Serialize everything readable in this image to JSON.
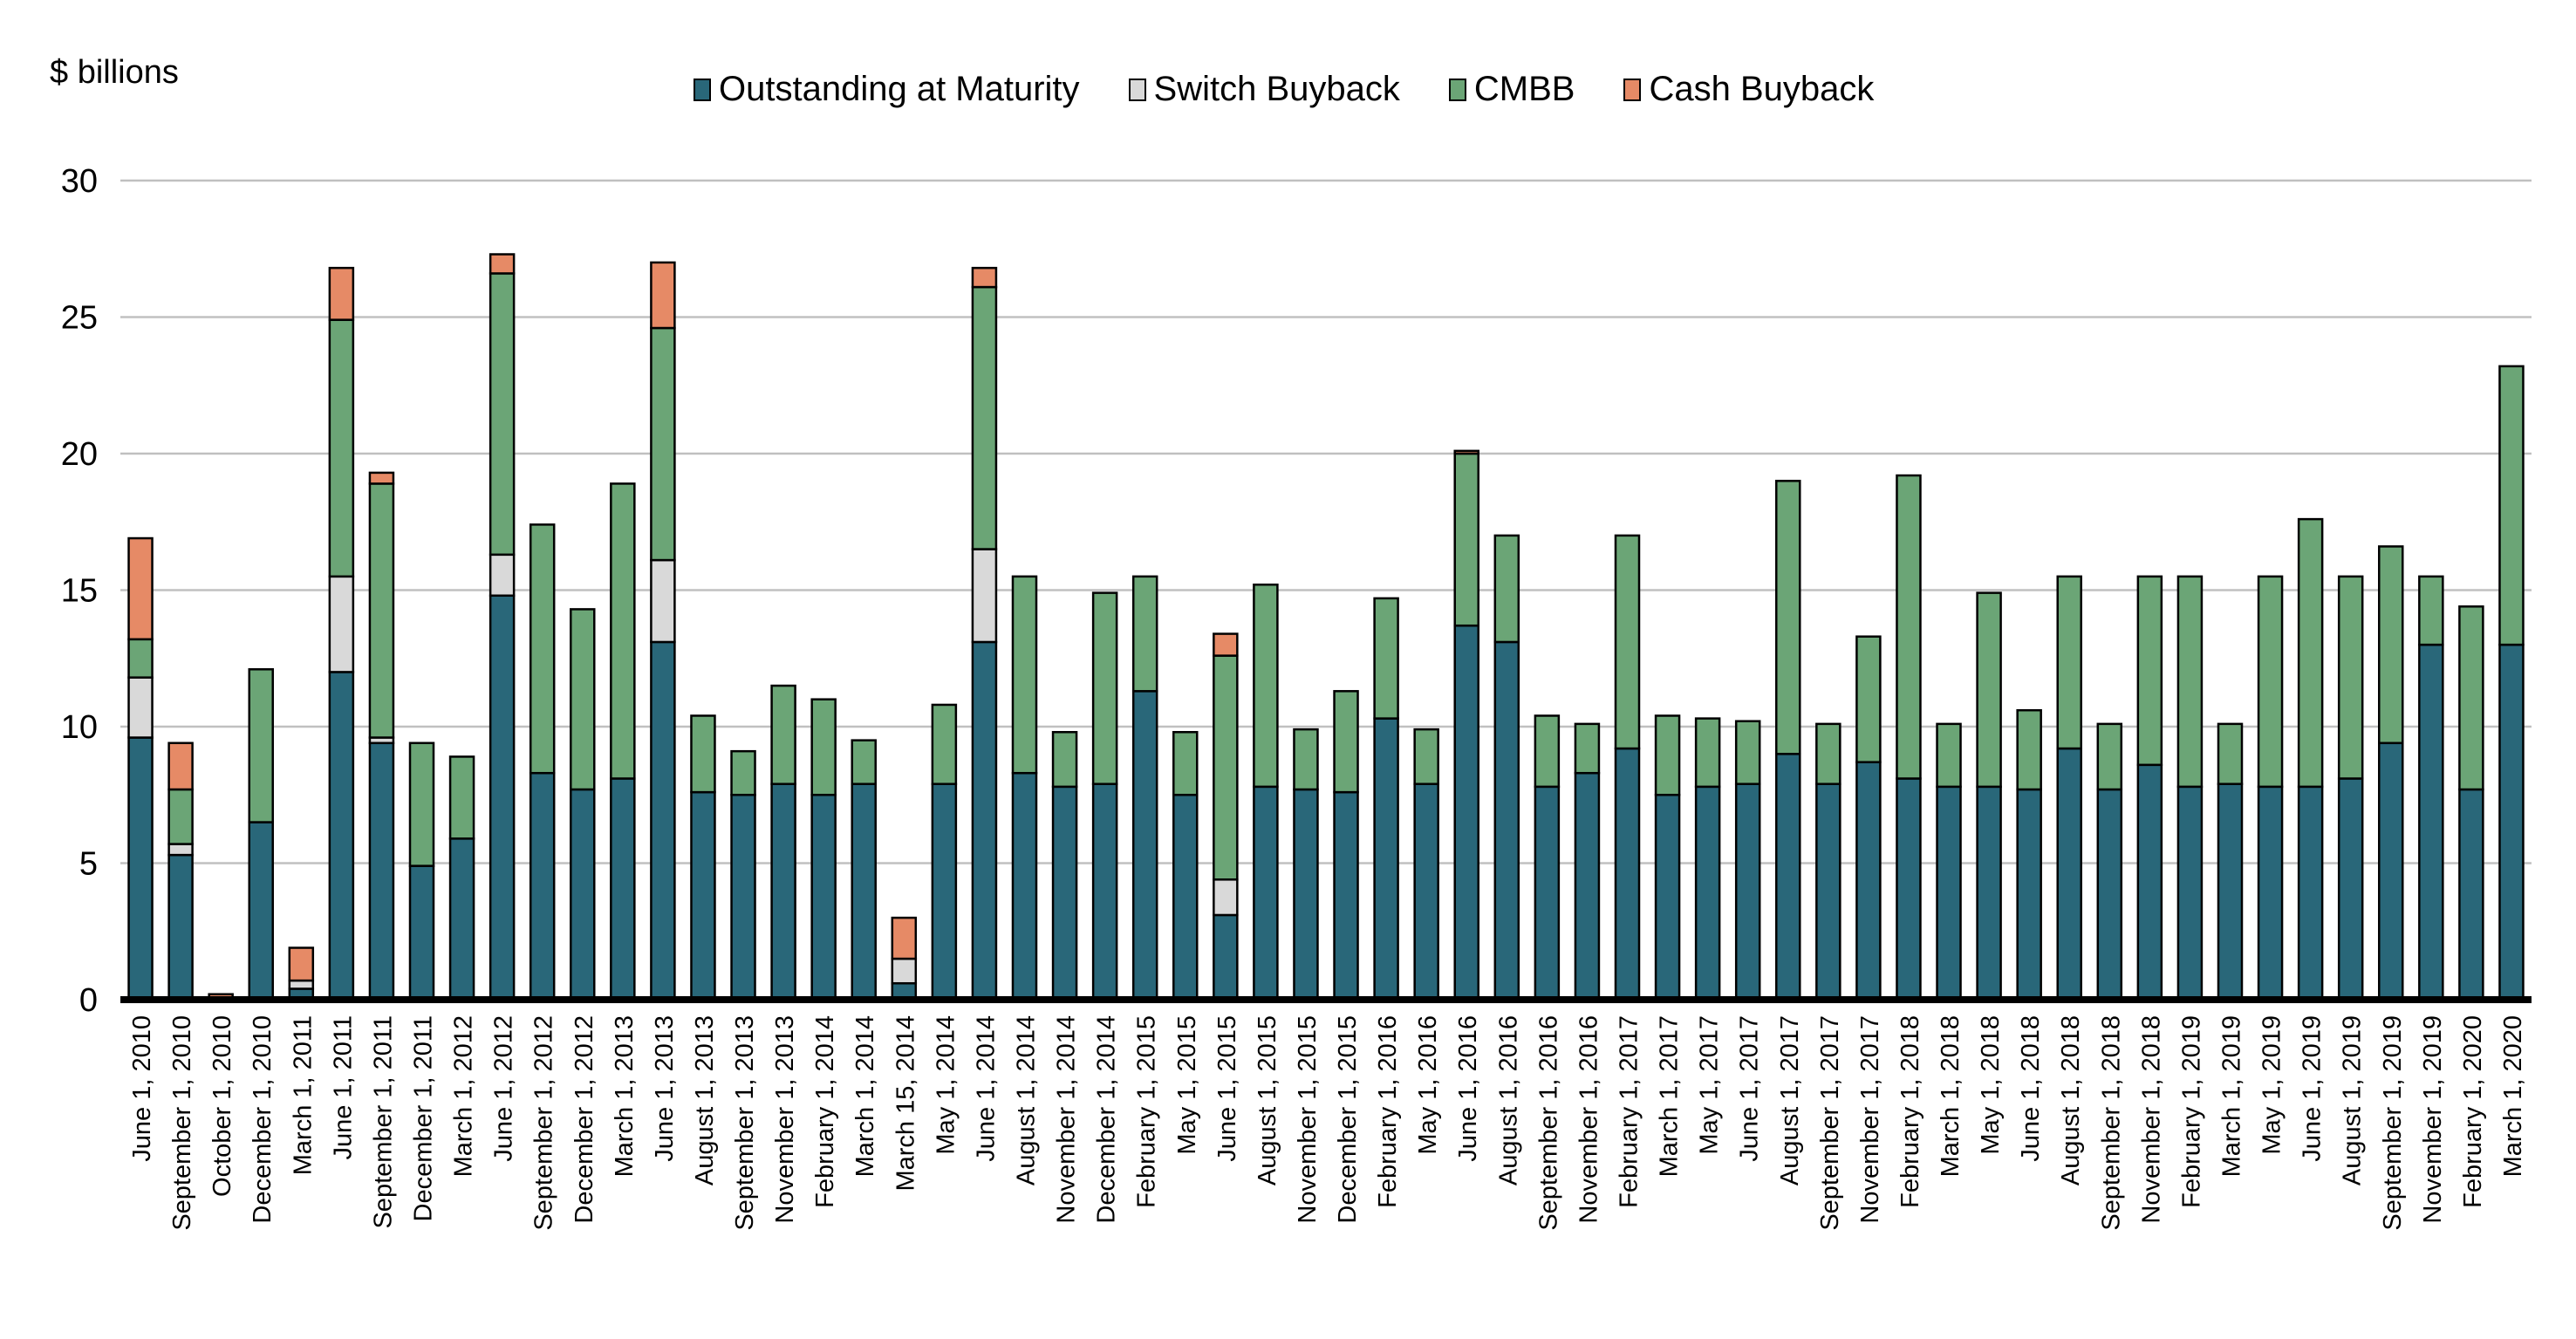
{
  "chart_data": {
    "type": "bar",
    "stacked": true,
    "title": "",
    "xlabel": "",
    "ylabel": "$ billions",
    "ylim": [
      0,
      30
    ],
    "yticks": [
      0,
      5,
      10,
      15,
      20,
      25,
      30
    ],
    "grid": true,
    "legend_position": "top-center",
    "categories": [
      "June 1, 2010",
      "September 1, 2010",
      "October 1, 2010",
      "December 1, 2010",
      "March 1, 2011",
      "June 1, 2011",
      "September 1, 2011",
      "December 1, 2011",
      "March 1, 2012",
      "June 1, 2012",
      "September 1, 2012",
      "December 1, 2012",
      "March 1, 2013",
      "June 1, 2013",
      "August 1, 2013",
      "September 1, 2013",
      "November 1, 2013",
      "February 1, 2014",
      "March 1, 2014",
      "March 15, 2014",
      "May 1, 2014",
      "June 1, 2014",
      "August 1, 2014",
      "November 1, 2014",
      "December 1, 2014",
      "February 1, 2015",
      "May 1, 2015",
      "June 1, 2015",
      "August 1, 2015",
      "November 1, 2015",
      "December 1, 2015",
      "February 1, 2016",
      "May 1, 2016",
      "June 1, 2016",
      "August 1, 2016",
      "September 1, 2016",
      "November 1, 2016",
      "February 1, 2017",
      "March 1, 2017",
      "May 1, 2017",
      "June 1, 2017",
      "August 1, 2017",
      "September 1, 2017",
      "November 1, 2017",
      "February 1, 2018",
      "March 1, 2018",
      "May 1, 2018",
      "June 1, 2018",
      "August 1, 2018",
      "September 1, 2018",
      "November 1, 2018",
      "February 1, 2019",
      "March 1, 2019",
      "May 1, 2019",
      "June 1, 2019",
      "August 1, 2019",
      "September 1, 2019",
      "November 1, 2019",
      "February 1, 2020",
      "March 1, 2020"
    ],
    "series": [
      {
        "name": "Outstanding at Maturity",
        "color": "#296779",
        "values": [
          9.6,
          5.3,
          0,
          6.5,
          0.4,
          12.0,
          9.4,
          4.9,
          5.9,
          14.8,
          8.3,
          7.7,
          8.1,
          13.1,
          7.6,
          7.5,
          7.9,
          7.5,
          7.9,
          0.6,
          7.9,
          13.1,
          8.3,
          7.8,
          7.9,
          11.3,
          7.5,
          3.1,
          7.8,
          7.7,
          7.6,
          10.3,
          7.9,
          13.7,
          13.1,
          7.8,
          8.3,
          9.2,
          7.5,
          7.8,
          7.9,
          9.0,
          7.9,
          8.7,
          8.1,
          7.8,
          7.8,
          7.7,
          9.2,
          7.7,
          8.6,
          7.8,
          7.9,
          7.8,
          7.8,
          8.1,
          9.4,
          13.0,
          7.7,
          13.0
        ]
      },
      {
        "name": "Switch Buyback",
        "color": "#d9d9d9",
        "values": [
          2.2,
          0.4,
          0,
          0,
          0.3,
          3.5,
          0.2,
          0,
          0,
          1.5,
          0,
          0,
          0,
          3.0,
          0,
          0,
          0,
          0,
          0,
          0.9,
          0,
          3.4,
          0,
          0,
          0,
          0,
          0,
          1.3,
          0,
          0,
          0,
          0,
          0,
          0,
          0,
          0,
          0,
          0,
          0,
          0,
          0,
          0,
          0,
          0,
          0,
          0,
          0,
          0,
          0,
          0,
          0,
          0,
          0,
          0,
          0,
          0,
          0,
          0,
          0,
          0
        ]
      },
      {
        "name": "CMBB",
        "color": "#6ba576",
        "values": [
          1.4,
          2.0,
          0,
          5.6,
          0,
          9.4,
          9.3,
          4.5,
          3.0,
          10.3,
          9.1,
          6.6,
          10.8,
          8.5,
          2.8,
          1.6,
          3.6,
          3.5,
          1.6,
          0,
          2.9,
          9.6,
          7.2,
          2.0,
          7.0,
          4.2,
          2.3,
          8.2,
          7.4,
          2.2,
          3.7,
          4.4,
          2.0,
          6.3,
          3.9,
          2.6,
          1.8,
          7.8,
          2.9,
          2.5,
          2.3,
          10.0,
          2.2,
          4.6,
          11.1,
          2.3,
          7.1,
          2.9,
          6.3,
          2.4,
          6.9,
          7.7,
          2.2,
          7.7,
          9.8,
          7.4,
          7.2,
          2.5,
          6.7,
          10.2
        ]
      },
      {
        "name": "Cash Buyback",
        "color": "#e68a66",
        "values": [
          3.7,
          1.7,
          0.2,
          0,
          1.2,
          1.9,
          0.4,
          0,
          0,
          0.7,
          0,
          0,
          0,
          2.4,
          0,
          0,
          0,
          0,
          0,
          1.5,
          0,
          0.7,
          0,
          0,
          0,
          0,
          0,
          0.8,
          0,
          0,
          0,
          0,
          0,
          0.1,
          0,
          0,
          0,
          0,
          0,
          0,
          0,
          0,
          0,
          0,
          0,
          0,
          0,
          0,
          0,
          0,
          0,
          0,
          0,
          0,
          0,
          0,
          0,
          0,
          0,
          0
        ]
      }
    ]
  }
}
